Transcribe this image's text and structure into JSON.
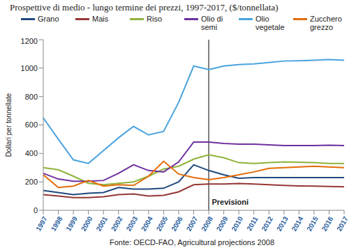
{
  "chart_data": {
    "type": "line",
    "title": "Prospettive di medio - lungo termine dei prezzi, 1997-2017, ($/tonnellata)",
    "y_label": "Dollari per tonnellate",
    "source": "Fonte: OECD-FAO, Agricultural projections 2008",
    "annotation": {
      "label": "Previsioni",
      "x": "2008"
    },
    "legend": "top",
    "categories": [
      "1997",
      "1998",
      "1999",
      "2000",
      "2001",
      "2002",
      "2003",
      "2004",
      "2005",
      "2006",
      "2007",
      "2008",
      "2009",
      "2010",
      "2011",
      "2012",
      "2013",
      "2014",
      "2015",
      "2016",
      "2017"
    ],
    "series": [
      {
        "name": "Grano",
        "color": "#1f497d",
        "values": [
          140,
          125,
          110,
          120,
          125,
          160,
          150,
          150,
          155,
          200,
          320,
          280,
          250,
          225,
          230,
          230,
          230,
          230,
          230,
          230,
          230
        ]
      },
      {
        "name": "Mais",
        "color": "#953735",
        "values": [
          110,
          100,
          90,
          90,
          95,
          110,
          115,
          100,
          105,
          130,
          180,
          185,
          185,
          188,
          185,
          180,
          175,
          172,
          170,
          168,
          165
        ]
      },
      {
        "name": "Riso",
        "color": "#8fb33a",
        "values": [
          300,
          285,
          240,
          190,
          180,
          190,
          200,
          240,
          290,
          310,
          360,
          390,
          370,
          335,
          330,
          335,
          340,
          338,
          335,
          330,
          330
        ]
      },
      {
        "name": "Olio di semi",
        "color": "#7030a0",
        "values": [
          260,
          220,
          205,
          205,
          210,
          260,
          320,
          280,
          270,
          340,
          480,
          480,
          470,
          465,
          465,
          460,
          455,
          455,
          455,
          458,
          455
        ]
      },
      {
        "name": "Olio vegetale",
        "color": "#4aa3df",
        "values": [
          650,
          500,
          355,
          330,
          420,
          510,
          590,
          530,
          555,
          760,
          1015,
          990,
          1015,
          1025,
          1030,
          1040,
          1050,
          1052,
          1055,
          1060,
          1055
        ]
      },
      {
        "name": "Zucchero grezzo",
        "color": "#e36c09",
        "values": [
          250,
          160,
          170,
          210,
          170,
          180,
          175,
          240,
          345,
          255,
          230,
          215,
          230,
          250,
          270,
          295,
          300,
          305,
          310,
          305,
          300
        ]
      }
    ],
    "ylim": [
      0,
      1200
    ],
    "yticks": [
      0,
      200,
      400,
      600,
      800,
      1000,
      1200
    ]
  }
}
